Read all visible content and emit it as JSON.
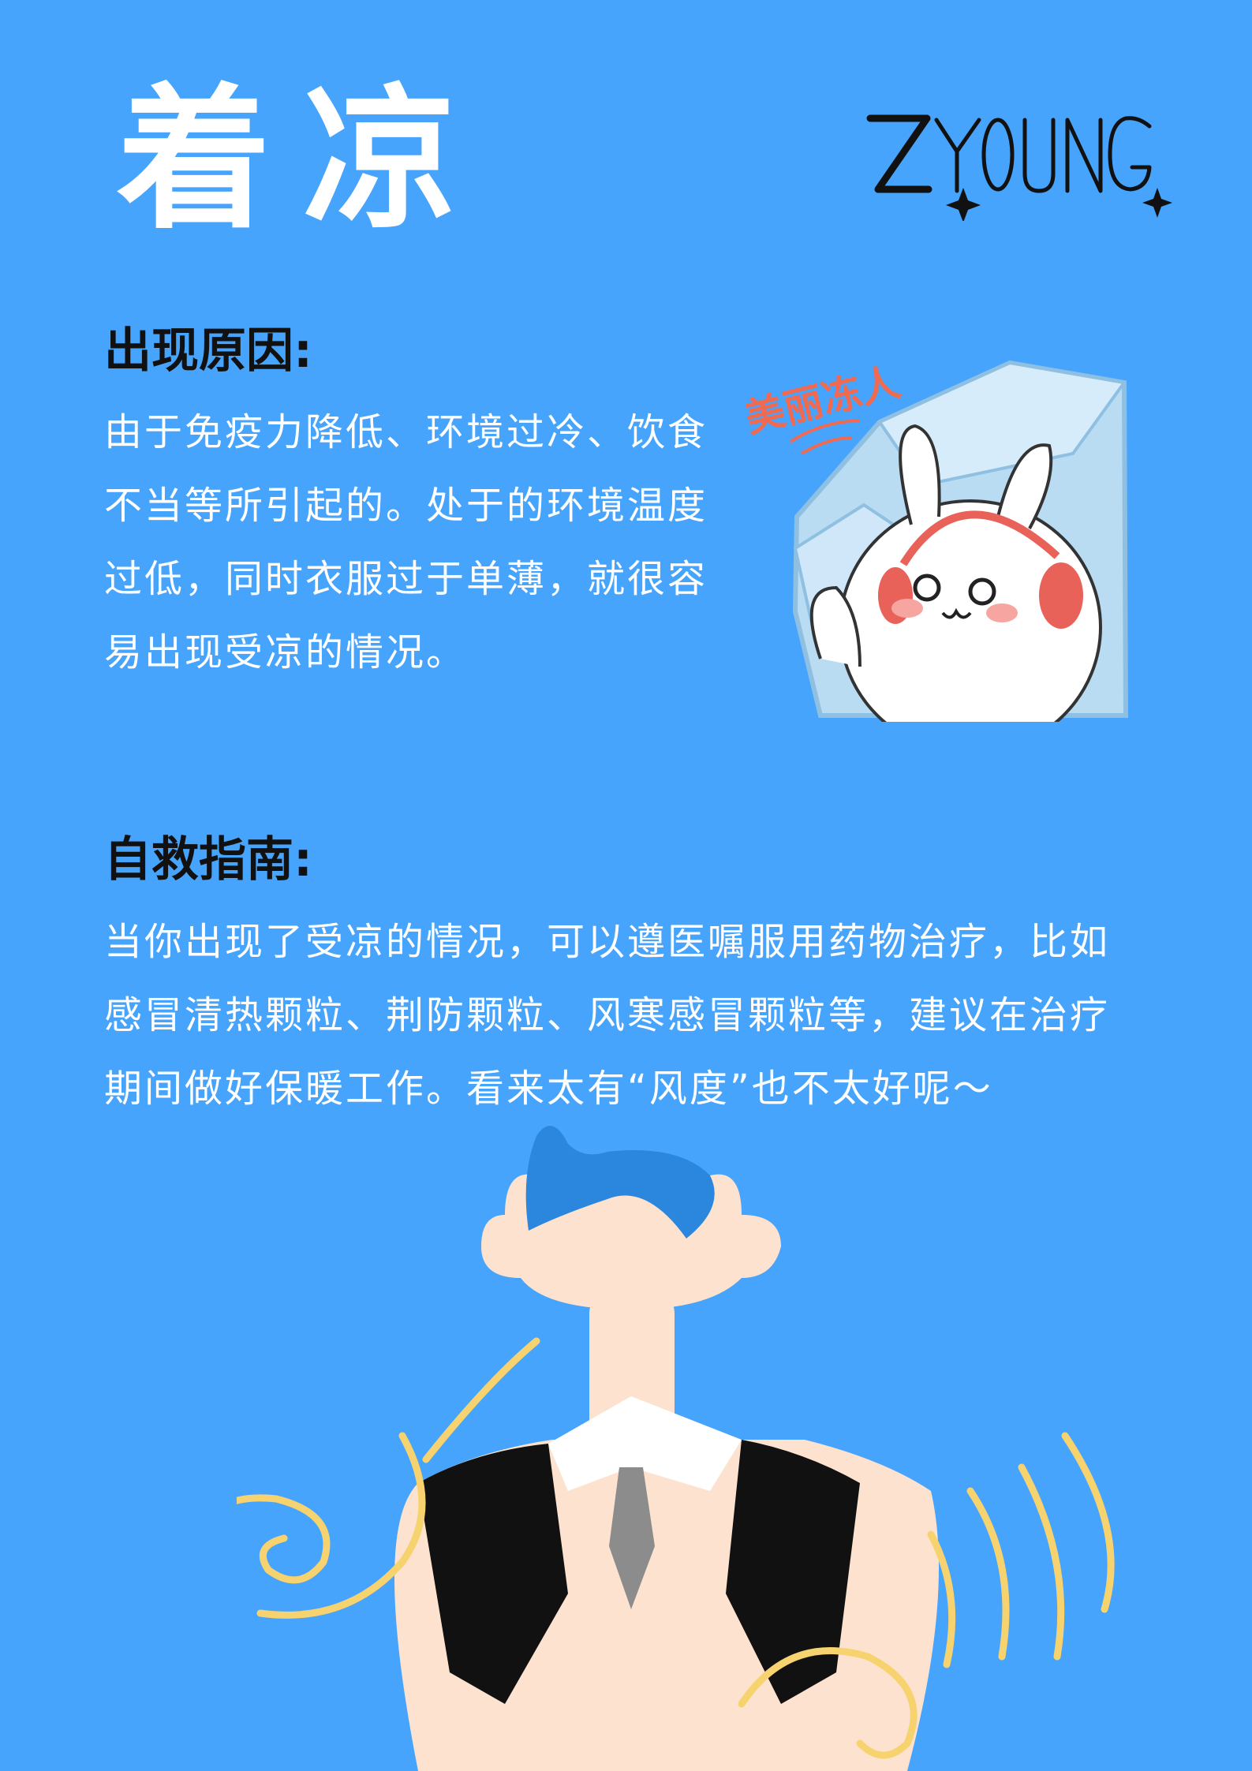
{
  "title": "着凉",
  "brand": {
    "logo_text": "ZYOUNG",
    "logo_icon": "sparkle-icon"
  },
  "causes": {
    "heading": "出现原因:",
    "body": "由于免疫力降低、环境过冷、饮食不当等所引起的。处于的环境温度过低，同时衣服过于单薄，就很容易出现受凉的情况。"
  },
  "sticker": {
    "caption": "美丽冻人"
  },
  "guide": {
    "heading": "自救指南:",
    "body": "当你出现了受凉的情况，可以遵医嘱服用药物治疗，比如感冒清热颗粒、荆防颗粒、风寒感冒颗粒等，建议在治疗期间做好保暖工作。看来太有“风度”也不太好呢～"
  },
  "colors": {
    "background": "#47a4fc",
    "heading_text": "#111111",
    "body_text": "#ffffff",
    "wind_swirl": "#f6d36f",
    "hair": "#2b86dd",
    "skin": "#fde3cf"
  }
}
